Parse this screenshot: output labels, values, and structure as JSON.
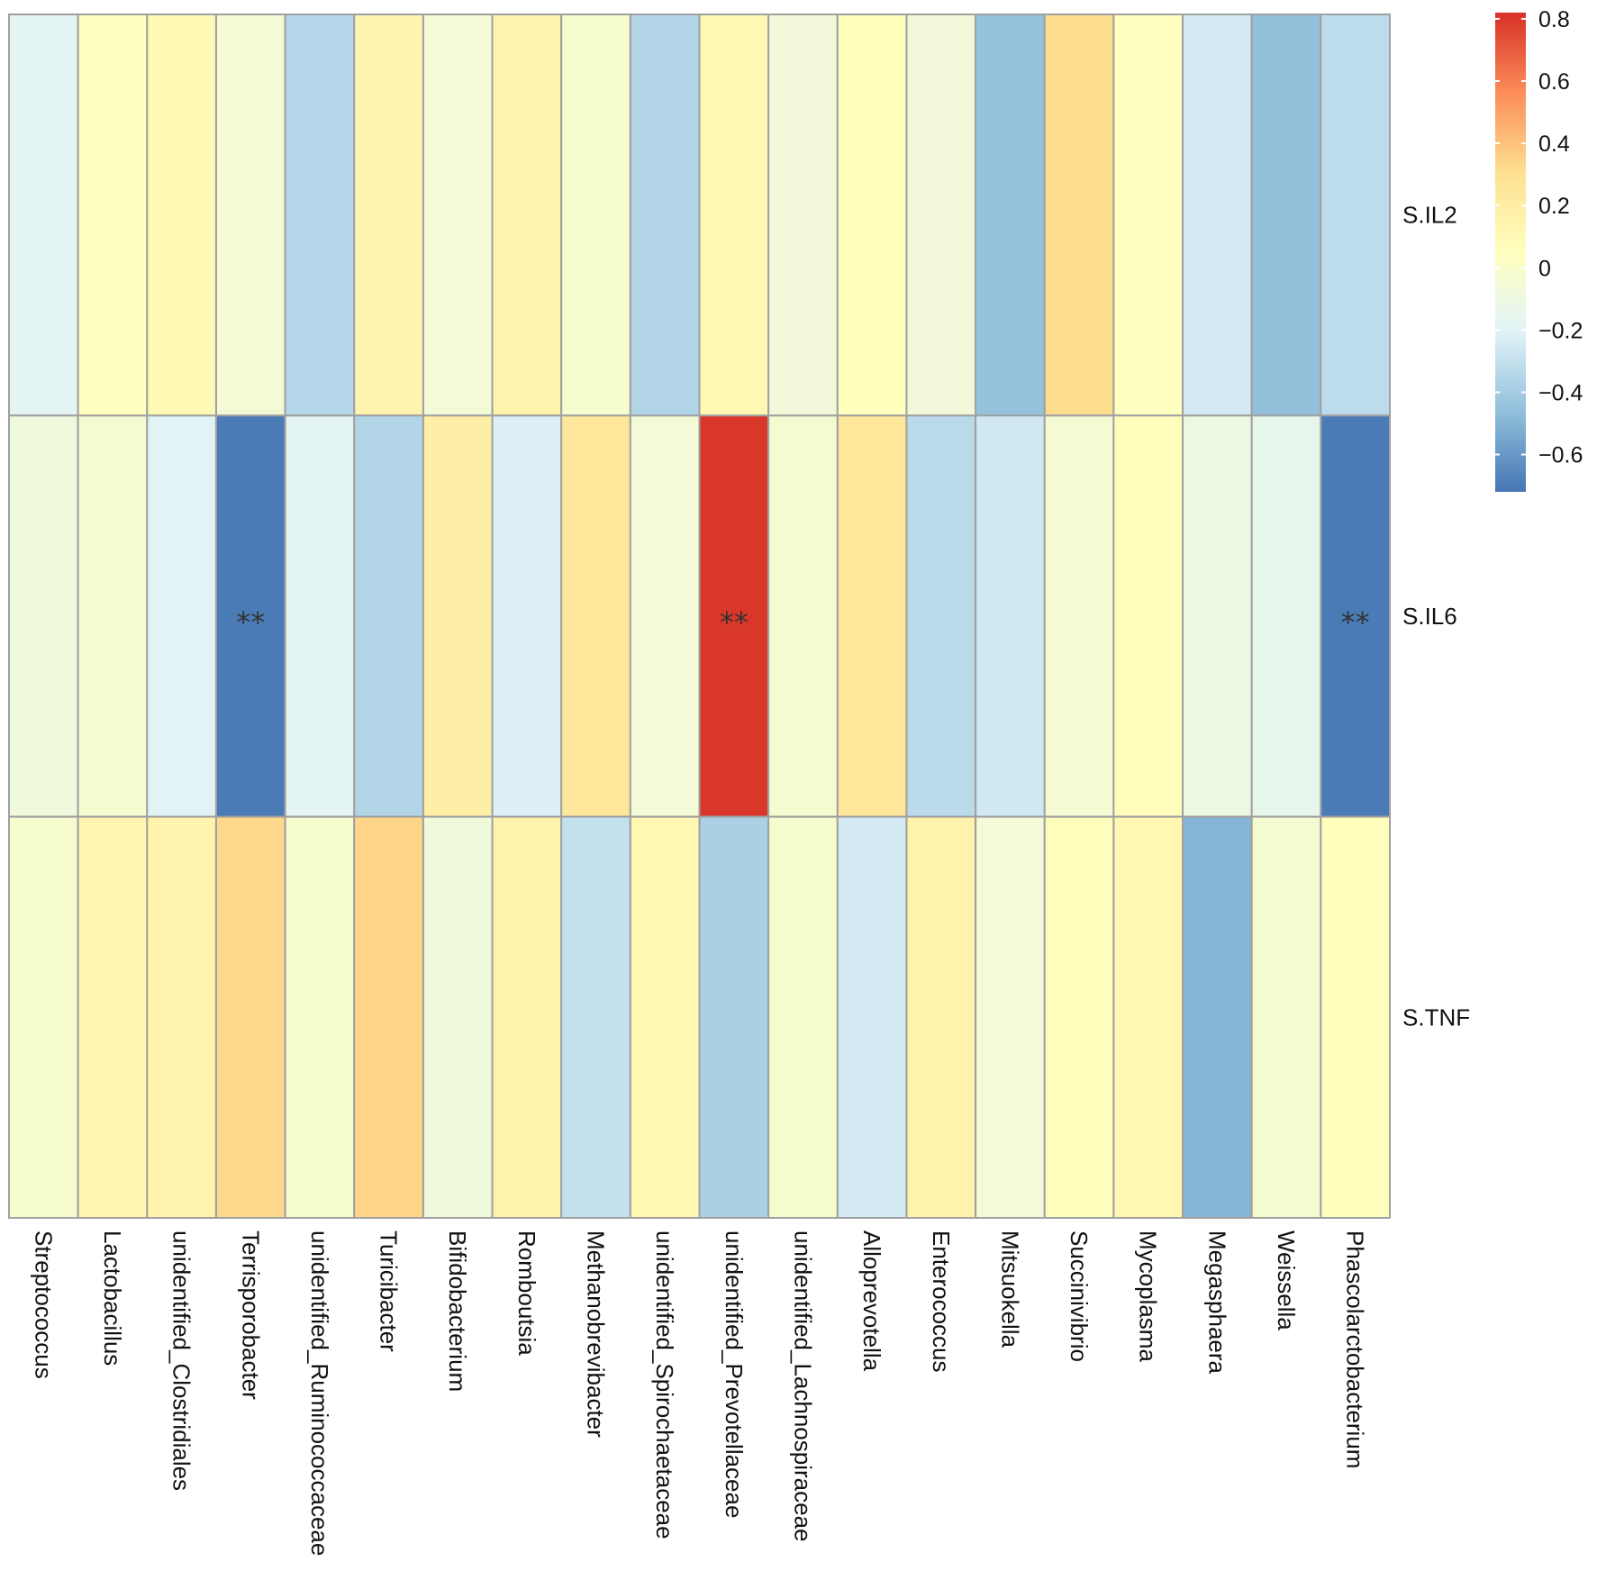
{
  "chart_data": {
    "type": "heatmap",
    "rows": [
      "S.IL2",
      "S.IL6",
      "S.TNF"
    ],
    "columns": [
      "Streptococcus",
      "Lactobacillus",
      "unidentified_Clostridiales",
      "Terrisporobacter",
      "unidentified_Ruminococcaceae",
      "Turicibacter",
      "Bifidobacterium",
      "Romboutsia",
      "Methanobrevibacter",
      "unidentified_Spirochaetaceae",
      "unidentified_Prevotellaceae",
      "unidentified_Lachnospiraceae",
      "Alloprevotella",
      "Enterococcus",
      "Mitsuokella",
      "Succinivibrio",
      "Mycoplasma",
      "Megasphaera",
      "Weissella",
      "Phascolarctobacterium"
    ],
    "values": [
      [
        -0.18,
        0.05,
        0.1,
        -0.05,
        -0.35,
        0.14,
        -0.06,
        0.15,
        -0.02,
        -0.36,
        0.12,
        -0.07,
        0.06,
        -0.07,
        -0.45,
        0.32,
        0.04,
        -0.25,
        -0.46,
        -0.32
      ],
      [
        -0.08,
        -0.03,
        -0.2,
        -0.7,
        -0.18,
        -0.36,
        0.18,
        -0.22,
        0.25,
        -0.06,
        0.8,
        -0.03,
        0.25,
        -0.33,
        -0.26,
        -0.04,
        0.06,
        -0.1,
        -0.15,
        -0.7
      ],
      [
        -0.02,
        0.13,
        0.15,
        0.33,
        -0.02,
        0.34,
        -0.08,
        0.16,
        -0.3,
        0.12,
        -0.38,
        -0.02,
        -0.25,
        0.16,
        -0.06,
        0.07,
        0.12,
        -0.5,
        -0.03,
        0.06
      ]
    ],
    "significance": [
      [
        "",
        "",
        "",
        "",
        "",
        "",
        "",
        "",
        "",
        "",
        "",
        "",
        "",
        "",
        "",
        "",
        "",
        "",
        "",
        ""
      ],
      [
        "",
        "",
        "",
        "**",
        "",
        "",
        "",
        "",
        "",
        "",
        "**",
        "",
        "",
        "",
        "",
        "",
        "",
        "",
        "",
        "**"
      ],
      [
        "",
        "",
        "",
        "",
        "",
        "",
        "",
        "",
        "",
        "",
        "",
        "",
        "",
        "",
        "",
        "",
        "",
        "",
        "",
        ""
      ]
    ],
    "legend": {
      "ticks": [
        0.8,
        0.6,
        0.4,
        0.2,
        0,
        -0.2,
        -0.4,
        -0.6
      ],
      "tick_labels": [
        "0.8",
        "0.6",
        "0.4",
        "0.2",
        "0",
        "−0.2",
        "−0.4",
        "−0.6"
      ],
      "range": [
        -0.72,
        0.82
      ],
      "placement": "top-right"
    },
    "colorscale": [
      "#4575B4",
      "#91BFDB",
      "#E0F3F8",
      "#FFFFBF",
      "#FEE090",
      "#FC8D59",
      "#D73027"
    ],
    "grid_color": "#A0A0A0"
  }
}
